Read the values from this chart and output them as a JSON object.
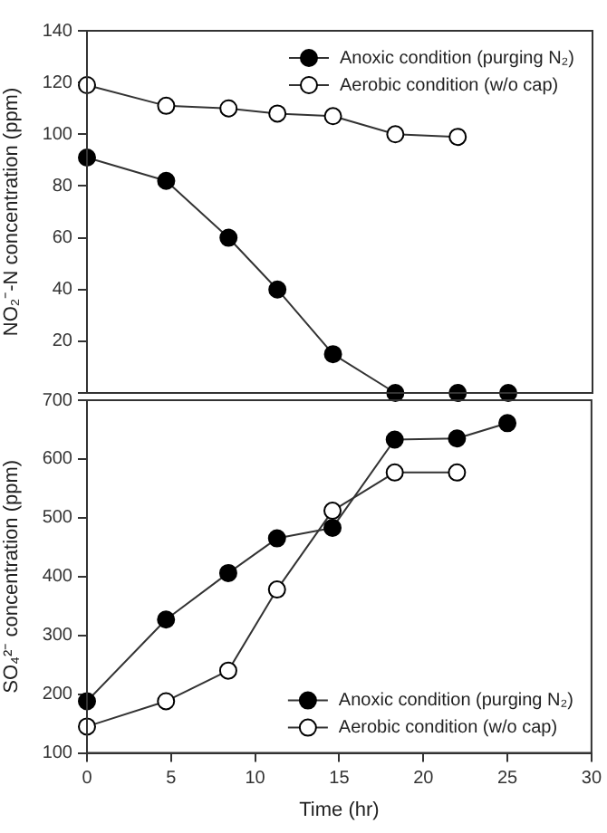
{
  "chart_data": [
    {
      "type": "line",
      "ylabel": "NO₂⁻-N concentration (ppm)",
      "xlim": [
        0,
        30
      ],
      "xticks": [
        0,
        5,
        10,
        15,
        20,
        25,
        30
      ],
      "ylim": [
        0,
        140
      ],
      "yticks": [
        {
          "value": 0,
          "label": null
        },
        20,
        40,
        60,
        80,
        100,
        120,
        140
      ],
      "tick_labels": "y",
      "marker": "circle",
      "legend": "top right",
      "grid": false,
      "series": [
        {
          "name": "Anoxic condition (purging N₂)",
          "color": "#000000",
          "x": [
            0,
            4.7,
            8.4,
            11.3,
            14.6,
            18.3,
            22,
            25
          ],
          "values": [
            91,
            82,
            60,
            40,
            15,
            0,
            0,
            0
          ]
        },
        {
          "name": "Aerobic condition (w/o cap)",
          "color": "#ffffff",
          "x": [
            0,
            4.7,
            8.4,
            11.3,
            14.6,
            18.3,
            22
          ],
          "values": [
            119,
            111,
            110,
            108,
            107,
            100,
            99
          ]
        }
      ]
    },
    {
      "type": "line",
      "xlabel": "Time (hr)",
      "ylabel": "SO₄²⁻ concentration (ppm)",
      "xlim": [
        0,
        30
      ],
      "xticks": [
        0,
        5,
        10,
        15,
        20,
        25,
        30
      ],
      "ylim": [
        100,
        700
      ],
      "yticks": [
        100,
        200,
        300,
        400,
        500,
        600,
        700
      ],
      "marker": "circle",
      "legend": "bottom right",
      "grid": false,
      "series": [
        {
          "name": "Anoxic condition (purging N₂)",
          "color": "#000000",
          "x": [
            0,
            4.7,
            8.4,
            11.3,
            14.6,
            18.3,
            22,
            25
          ],
          "values": [
            188,
            327,
            406,
            465,
            483,
            633,
            635,
            661
          ]
        },
        {
          "name": "Aerobic condition (w/o cap)",
          "color": "#ffffff",
          "x": [
            0,
            4.7,
            8.4,
            11.3,
            14.6,
            18.3,
            22
          ],
          "values": [
            145,
            188,
            240,
            378,
            512,
            577,
            577
          ]
        }
      ]
    }
  ]
}
